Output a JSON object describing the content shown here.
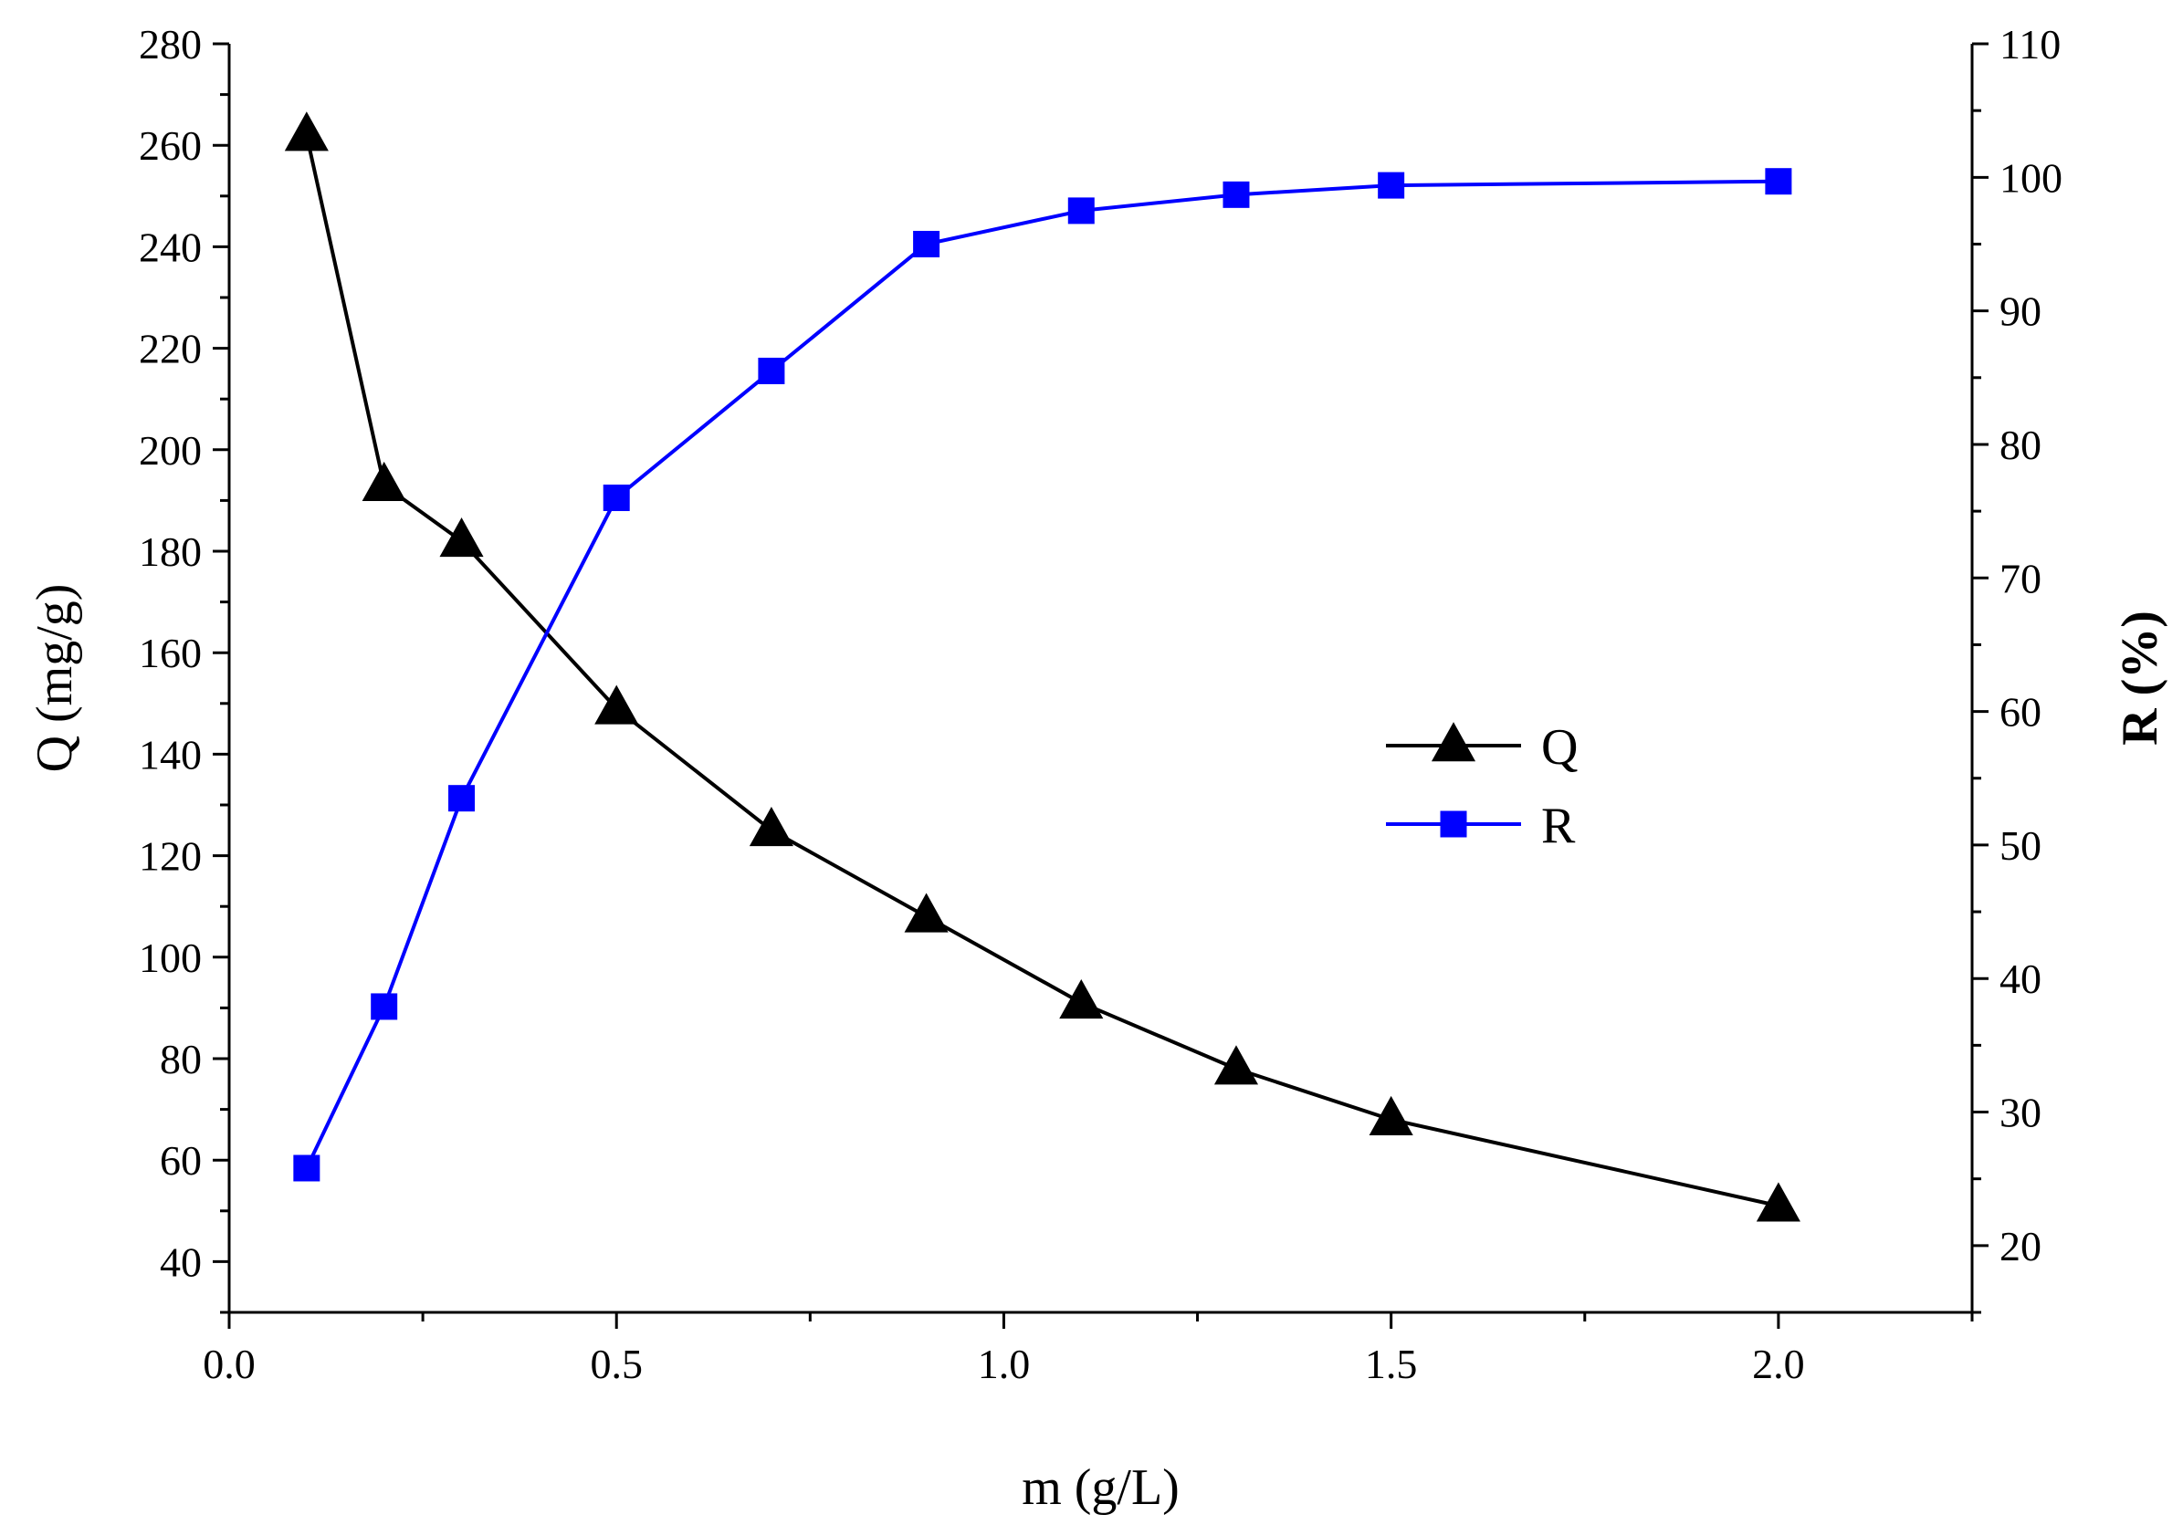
{
  "chart_data": {
    "type": "line",
    "xlabel": "m (g/L)",
    "ylabel_left": "Q (mg/g)",
    "ylabel_right": "R (%)",
    "xlim": [
      0,
      2.25
    ],
    "ylim_left": [
      30,
      280
    ],
    "ylim_right": [
      15,
      110
    ],
    "x_ticks": [
      "0.0",
      "0.5",
      "1.0",
      "1.5",
      "2.0"
    ],
    "y_left_ticks": [
      "40",
      "60",
      "80",
      "100",
      "120",
      "140",
      "160",
      "180",
      "200",
      "220",
      "240",
      "260",
      "280"
    ],
    "y_right_ticks": [
      "20",
      "30",
      "40",
      "50",
      "60",
      "70",
      "80",
      "90",
      "100",
      "110"
    ],
    "grid": false,
    "legend_position": "center-right",
    "series": [
      {
        "name": "Q",
        "axis": "left",
        "marker": "triangle",
        "color": "#000000",
        "x": [
          0.1,
          0.2,
          0.3,
          0.5,
          0.7,
          0.9,
          1.1,
          1.3,
          1.5,
          2.0
        ],
        "values": [
          262,
          193,
          182,
          149,
          125,
          108,
          91,
          78,
          68,
          51
        ]
      },
      {
        "name": "R",
        "axis": "right",
        "marker": "square",
        "color": "#0000ff",
        "x": [
          0.1,
          0.2,
          0.3,
          0.5,
          0.7,
          0.9,
          1.1,
          1.3,
          1.5,
          2.0
        ],
        "values": [
          25.8,
          37.9,
          53.5,
          76.0,
          85.5,
          95.0,
          97.5,
          98.7,
          99.4,
          99.7
        ]
      }
    ]
  }
}
